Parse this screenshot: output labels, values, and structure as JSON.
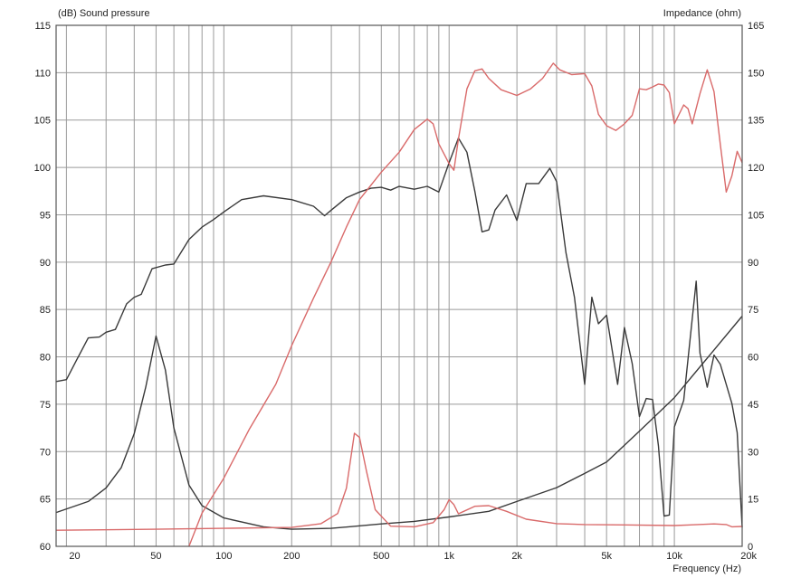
{
  "chart_data": {
    "type": "line",
    "y_left_label": "(dB)  Sound pressure",
    "y_right_label": "Impedance  (ohm)",
    "xlabel": "Frequency  (Hz)",
    "x_scale": "log",
    "xlim": [
      18,
      20000
    ],
    "ylim_left": [
      60,
      115
    ],
    "ylim_right": [
      0,
      165
    ],
    "grid": true,
    "x_ticks": [
      {
        "value": 20,
        "label": "20"
      },
      {
        "value": 50,
        "label": "50"
      },
      {
        "value": 100,
        "label": "100"
      },
      {
        "value": 200,
        "label": "200"
      },
      {
        "value": 500,
        "label": "500"
      },
      {
        "value": 1000,
        "label": "1k"
      },
      {
        "value": 2000,
        "label": "2k"
      },
      {
        "value": 5000,
        "label": "5k"
      },
      {
        "value": 10000,
        "label": "10k"
      },
      {
        "value": 20000,
        "label": "20k"
      }
    ],
    "y_left_ticks": [
      "60",
      "65",
      "70",
      "75",
      "80",
      "85",
      "90",
      "95",
      "100",
      "105",
      "110",
      "115"
    ],
    "y_right_ticks": [
      "0",
      "15",
      "30",
      "45",
      "60",
      "75",
      "90",
      "105",
      "120",
      "135",
      "150",
      "165"
    ],
    "colors": {
      "woofer": "#3a3a3a",
      "tweeter": "#d96a6a"
    },
    "series": [
      {
        "key": "woofer_spl",
        "color": "#3a3a3a",
        "axis": "left",
        "points": [
          [
            18,
            77.4
          ],
          [
            20,
            77.6
          ],
          [
            22,
            79.5
          ],
          [
            25,
            82
          ],
          [
            28,
            82.1
          ],
          [
            30,
            82.6
          ],
          [
            33,
            82.9
          ],
          [
            37,
            85.6
          ],
          [
            40,
            86.3
          ],
          [
            43,
            86.6
          ],
          [
            48,
            89.3
          ],
          [
            55,
            89.7
          ],
          [
            60,
            89.8
          ],
          [
            70,
            92.4
          ],
          [
            80,
            93.7
          ],
          [
            90,
            94.5
          ],
          [
            100,
            95.3
          ],
          [
            120,
            96.6
          ],
          [
            150,
            97.0
          ],
          [
            200,
            96.6
          ],
          [
            250,
            95.9
          ],
          [
            280,
            94.9
          ],
          [
            300,
            95.5
          ],
          [
            350,
            96.8
          ],
          [
            400,
            97.4
          ],
          [
            450,
            97.8
          ],
          [
            500,
            97.9
          ],
          [
            550,
            97.6
          ],
          [
            600,
            98.0
          ],
          [
            700,
            97.7
          ],
          [
            800,
            98.0
          ],
          [
            900,
            97.4
          ],
          [
            1000,
            100.5
          ],
          [
            1100,
            103.1
          ],
          [
            1200,
            101.6
          ],
          [
            1300,
            97.5
          ],
          [
            1400,
            93.2
          ],
          [
            1500,
            93.4
          ],
          [
            1600,
            95.5
          ],
          [
            1800,
            97.1
          ],
          [
            2000,
            94.4
          ],
          [
            2200,
            98.3
          ],
          [
            2500,
            98.3
          ],
          [
            2800,
            99.9
          ],
          [
            3000,
            98.5
          ],
          [
            3300,
            91.0
          ],
          [
            3600,
            86.3
          ],
          [
            4000,
            77.1
          ],
          [
            4300,
            86.3
          ],
          [
            4600,
            83.5
          ],
          [
            5000,
            84.4
          ],
          [
            5600,
            77.1
          ],
          [
            6000,
            83.1
          ],
          [
            6500,
            79.3
          ],
          [
            7000,
            73.7
          ],
          [
            7500,
            75.6
          ],
          [
            8000,
            75.5
          ],
          [
            8500,
            70.6
          ],
          [
            9000,
            63.2
          ],
          [
            9500,
            63.3
          ],
          [
            10000,
            72.6
          ],
          [
            11000,
            75.4
          ],
          [
            12000,
            84.0
          ],
          [
            12500,
            88.0
          ],
          [
            13000,
            80.4
          ],
          [
            14000,
            76.8
          ],
          [
            15000,
            80.2
          ],
          [
            16000,
            79.2
          ],
          [
            18000,
            75.1
          ],
          [
            19000,
            72.0
          ],
          [
            20000,
            62.0
          ]
        ]
      },
      {
        "key": "woofer_impedance",
        "color": "#3a3a3a",
        "axis": "right",
        "points": [
          [
            18,
            10.7
          ],
          [
            25,
            14.2
          ],
          [
            30,
            18.5
          ],
          [
            35,
            24.9
          ],
          [
            40,
            35.7
          ],
          [
            45,
            50.4
          ],
          [
            50,
            66.6
          ],
          [
            55,
            55.9
          ],
          [
            60,
            37.5
          ],
          [
            70,
            19.4
          ],
          [
            80,
            12.9
          ],
          [
            100,
            9.0
          ],
          [
            150,
            6.2
          ],
          [
            200,
            5.4
          ],
          [
            300,
            5.7
          ],
          [
            500,
            7.1
          ],
          [
            700,
            7.9
          ],
          [
            1000,
            9.3
          ],
          [
            1500,
            11.1
          ],
          [
            2000,
            14.2
          ],
          [
            3000,
            18.6
          ],
          [
            4000,
            23.1
          ],
          [
            5000,
            26.7
          ],
          [
            7000,
            36.5
          ],
          [
            10000,
            47.1
          ],
          [
            15000,
            62.2
          ],
          [
            20000,
            72.9
          ]
        ]
      },
      {
        "key": "tweeter_spl",
        "color": "#d96a6a",
        "axis": "left",
        "points": [
          [
            70,
            60.0
          ],
          [
            80,
            63.5
          ],
          [
            100,
            67.2
          ],
          [
            130,
            72.4
          ],
          [
            170,
            77.1
          ],
          [
            200,
            81.2
          ],
          [
            250,
            86.2
          ],
          [
            300,
            90.1
          ],
          [
            350,
            93.7
          ],
          [
            400,
            96.6
          ],
          [
            500,
            99.5
          ],
          [
            600,
            101.6
          ],
          [
            700,
            104.0
          ],
          [
            800,
            105.1
          ],
          [
            850,
            104.6
          ],
          [
            900,
            102.5
          ],
          [
            1000,
            100.4
          ],
          [
            1050,
            99.7
          ],
          [
            1100,
            103.0
          ],
          [
            1200,
            108.3
          ],
          [
            1300,
            110.2
          ],
          [
            1400,
            110.4
          ],
          [
            1500,
            109.4
          ],
          [
            1700,
            108.2
          ],
          [
            2000,
            107.6
          ],
          [
            2300,
            108.3
          ],
          [
            2600,
            109.4
          ],
          [
            2900,
            111.0
          ],
          [
            3100,
            110.3
          ],
          [
            3500,
            109.8
          ],
          [
            4000,
            109.9
          ],
          [
            4300,
            108.6
          ],
          [
            4600,
            105.6
          ],
          [
            5000,
            104.4
          ],
          [
            5500,
            103.9
          ],
          [
            6000,
            104.6
          ],
          [
            6500,
            105.5
          ],
          [
            7000,
            108.3
          ],
          [
            7500,
            108.2
          ],
          [
            8000,
            108.5
          ],
          [
            8500,
            108.8
          ],
          [
            9000,
            108.7
          ],
          [
            9500,
            107.9
          ],
          [
            10000,
            104.6
          ],
          [
            11000,
            106.6
          ],
          [
            11500,
            106.2
          ],
          [
            12000,
            104.6
          ],
          [
            13000,
            107.8
          ],
          [
            14000,
            110.3
          ],
          [
            15000,
            108.0
          ],
          [
            16000,
            102.4
          ],
          [
            17000,
            97.4
          ],
          [
            18000,
            99.1
          ],
          [
            19000,
            101.7
          ],
          [
            20000,
            100.5
          ]
        ]
      },
      {
        "key": "tweeter_impedance",
        "color": "#d96a6a",
        "axis": "right",
        "points": [
          [
            18,
            5.1
          ],
          [
            50,
            5.4
          ],
          [
            100,
            5.7
          ],
          [
            200,
            6.0
          ],
          [
            270,
            7.2
          ],
          [
            320,
            10.4
          ],
          [
            350,
            18.4
          ],
          [
            380,
            35.8
          ],
          [
            400,
            34.5
          ],
          [
            430,
            23.7
          ],
          [
            470,
            11.6
          ],
          [
            550,
            6.4
          ],
          [
            700,
            6.2
          ],
          [
            850,
            7.5
          ],
          [
            950,
            11.6
          ],
          [
            1000,
            14.8
          ],
          [
            1050,
            13.2
          ],
          [
            1100,
            10.3
          ],
          [
            1300,
            12.7
          ],
          [
            1500,
            12.9
          ],
          [
            1800,
            11.1
          ],
          [
            2200,
            8.6
          ],
          [
            3000,
            7.2
          ],
          [
            4000,
            6.9
          ],
          [
            6000,
            6.8
          ],
          [
            10000,
            6.6
          ],
          [
            15000,
            7.1
          ],
          [
            17000,
            6.9
          ],
          [
            18000,
            6.2
          ],
          [
            20000,
            6.3
          ]
        ]
      }
    ]
  }
}
